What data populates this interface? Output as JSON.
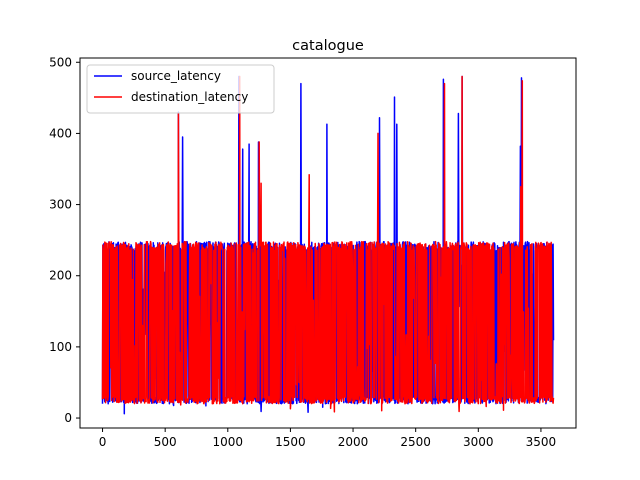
{
  "chart_data": {
    "type": "line",
    "title": "catalogue",
    "xlabel": "",
    "ylabel": "",
    "xlim": [
      -180,
      3780
    ],
    "ylim": [
      -14,
      506
    ],
    "xticks": [
      0,
      500,
      1000,
      1500,
      2000,
      2500,
      3000,
      3500
    ],
    "yticks": [
      0,
      100,
      200,
      300,
      400,
      500
    ],
    "legend": "top-left",
    "grid": false,
    "series": [
      {
        "name": "source_latency",
        "color": "#0000ff",
        "x_range": [
          0,
          3600
        ],
        "typical_range": [
          5,
          248
        ],
        "spikes": [
          {
            "x": 605,
            "y": 430
          },
          {
            "x": 640,
            "y": 395
          },
          {
            "x": 1090,
            "y": 480
          },
          {
            "x": 1120,
            "y": 378
          },
          {
            "x": 1170,
            "y": 385
          },
          {
            "x": 1245,
            "y": 388
          },
          {
            "x": 1585,
            "y": 470
          },
          {
            "x": 1790,
            "y": 413
          },
          {
            "x": 2210,
            "y": 422
          },
          {
            "x": 2330,
            "y": 451
          },
          {
            "x": 2350,
            "y": 413
          },
          {
            "x": 2720,
            "y": 476
          },
          {
            "x": 2840,
            "y": 428
          },
          {
            "x": 2870,
            "y": 480
          },
          {
            "x": 3335,
            "y": 382
          },
          {
            "x": 3345,
            "y": 478
          }
        ]
      },
      {
        "name": "destination_latency",
        "color": "#ff0000",
        "x_range": [
          0,
          3600
        ],
        "typical_range": [
          5,
          248
        ],
        "spikes": [
          {
            "x": 605,
            "y": 428
          },
          {
            "x": 1095,
            "y": 480
          },
          {
            "x": 1250,
            "y": 388
          },
          {
            "x": 1265,
            "y": 330
          },
          {
            "x": 1650,
            "y": 342
          },
          {
            "x": 2200,
            "y": 400
          },
          {
            "x": 2730,
            "y": 470
          },
          {
            "x": 2870,
            "y": 480
          },
          {
            "x": 3340,
            "y": 325
          },
          {
            "x": 3350,
            "y": 474
          }
        ]
      }
    ]
  }
}
